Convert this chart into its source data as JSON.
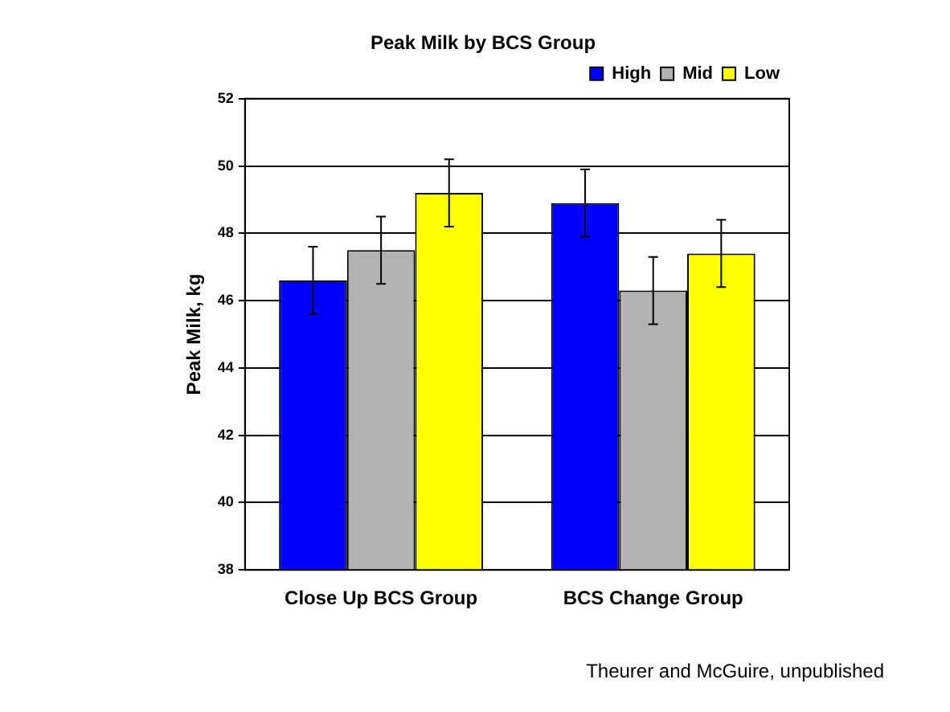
{
  "chart_data": {
    "type": "bar",
    "title": "Peak Milk by BCS Group",
    "ylabel": "Peak Milk, kg",
    "categories": [
      "Close Up BCS Group",
      "BCS Change Group"
    ],
    "series": [
      {
        "name": "High",
        "color": "#0000ff",
        "values": [
          46.6,
          48.9
        ],
        "errors": [
          1.0,
          1.0
        ]
      },
      {
        "name": "Mid",
        "color": "#b2b2b2",
        "values": [
          47.5,
          46.3
        ],
        "errors": [
          1.0,
          1.0
        ]
      },
      {
        "name": "Low",
        "color": "#ffff00",
        "values": [
          49.2,
          47.4
        ],
        "errors": [
          1.0,
          1.0
        ]
      }
    ],
    "ylim": [
      38,
      52
    ],
    "yticks": [
      38,
      40,
      42,
      44,
      46,
      48,
      50,
      52
    ],
    "grid": "y",
    "legend": "top right",
    "annotations": [
      "Theurer and McGuire, unpublished"
    ]
  }
}
